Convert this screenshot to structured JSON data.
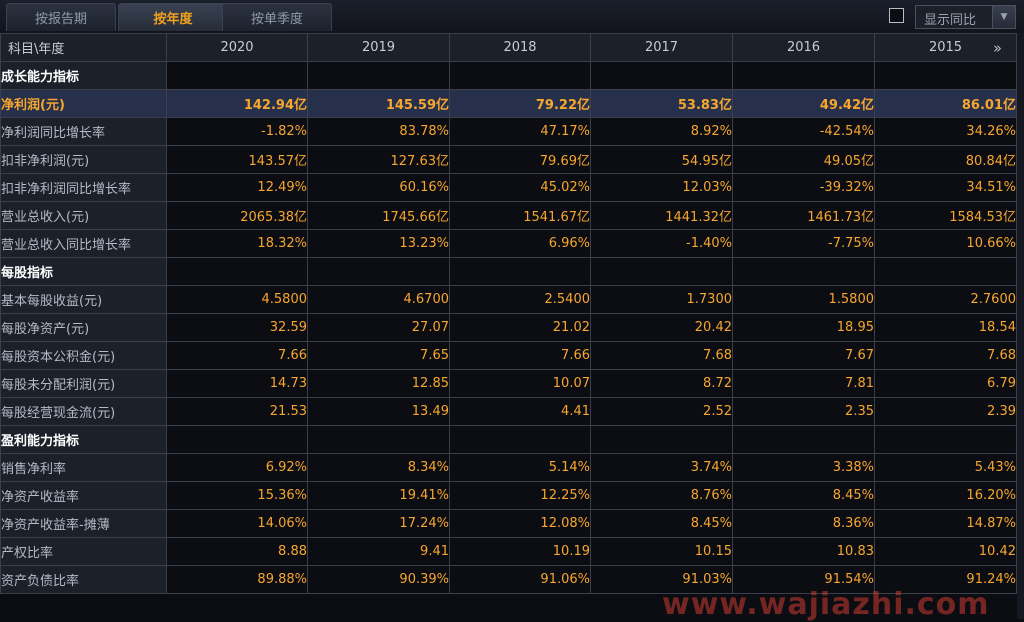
{
  "tabs": [
    {
      "label": "按报告期",
      "active": false
    },
    {
      "label": "按年度",
      "active": true
    },
    {
      "label": "按单季度",
      "active": false
    }
  ],
  "toggle": {
    "label": "显示同比",
    "checked": false
  },
  "table": {
    "corner": "科目\\年度",
    "years": [
      "2020",
      "2019",
      "2018",
      "2017",
      "2016",
      "2015"
    ],
    "rows": [
      {
        "label": "成长能力指标",
        "type": "section",
        "values": [
          "",
          "",
          "",
          "",
          "",
          ""
        ]
      },
      {
        "label": "净利润(元)",
        "type": "highlight",
        "values": [
          "142.94亿",
          "145.59亿",
          "79.22亿",
          "53.83亿",
          "49.42亿",
          "86.01亿"
        ]
      },
      {
        "label": "净利润同比增长率",
        "type": "data",
        "values": [
          "-1.82%",
          "83.78%",
          "47.17%",
          "8.92%",
          "-42.54%",
          "34.26%"
        ]
      },
      {
        "label": "扣非净利润(元)",
        "type": "data",
        "values": [
          "143.57亿",
          "127.63亿",
          "79.69亿",
          "54.95亿",
          "49.05亿",
          "80.84亿"
        ]
      },
      {
        "label": "扣非净利润同比增长率",
        "type": "data",
        "values": [
          "12.49%",
          "60.16%",
          "45.02%",
          "12.03%",
          "-39.32%",
          "34.51%"
        ]
      },
      {
        "label": "营业总收入(元)",
        "type": "data",
        "values": [
          "2065.38亿",
          "1745.66亿",
          "1541.67亿",
          "1441.32亿",
          "1461.73亿",
          "1584.53亿"
        ]
      },
      {
        "label": "营业总收入同比增长率",
        "type": "data",
        "values": [
          "18.32%",
          "13.23%",
          "6.96%",
          "-1.40%",
          "-7.75%",
          "10.66%"
        ]
      },
      {
        "label": "每股指标",
        "type": "section",
        "values": [
          "",
          "",
          "",
          "",
          "",
          ""
        ]
      },
      {
        "label": "基本每股收益(元)",
        "type": "data",
        "values": [
          "4.5800",
          "4.6700",
          "2.5400",
          "1.7300",
          "1.5800",
          "2.7600"
        ]
      },
      {
        "label": "每股净资产(元)",
        "type": "data",
        "values": [
          "32.59",
          "27.07",
          "21.02",
          "20.42",
          "18.95",
          "18.54"
        ]
      },
      {
        "label": "每股资本公积金(元)",
        "type": "data",
        "values": [
          "7.66",
          "7.65",
          "7.66",
          "7.68",
          "7.67",
          "7.68"
        ]
      },
      {
        "label": "每股未分配利润(元)",
        "type": "data",
        "values": [
          "14.73",
          "12.85",
          "10.07",
          "8.72",
          "7.81",
          "6.79"
        ]
      },
      {
        "label": "每股经营现金流(元)",
        "type": "data",
        "values": [
          "21.53",
          "13.49",
          "4.41",
          "2.52",
          "2.35",
          "2.39"
        ]
      },
      {
        "label": "盈利能力指标",
        "type": "section",
        "values": [
          "",
          "",
          "",
          "",
          "",
          ""
        ]
      },
      {
        "label": "销售净利率",
        "type": "data",
        "values": [
          "6.92%",
          "8.34%",
          "5.14%",
          "3.74%",
          "3.38%",
          "5.43%"
        ]
      },
      {
        "label": "净资产收益率",
        "type": "data",
        "values": [
          "15.36%",
          "19.41%",
          "12.25%",
          "8.76%",
          "8.45%",
          "16.20%"
        ]
      },
      {
        "label": "净资产收益率-摊薄",
        "type": "data",
        "values": [
          "14.06%",
          "17.24%",
          "12.08%",
          "8.45%",
          "8.36%",
          "14.87%"
        ]
      },
      {
        "label": "产权比率",
        "type": "data",
        "values": [
          "8.88",
          "9.41",
          "10.19",
          "10.15",
          "10.83",
          "10.42"
        ]
      },
      {
        "label": "资产负债比率",
        "type": "data",
        "values": [
          "89.88%",
          "90.39%",
          "91.06%",
          "91.03%",
          "91.54%",
          "91.24%"
        ]
      }
    ]
  },
  "icons": {
    "expand": "double-chevron-right-icon",
    "combo_arrow": "chevron-down-icon"
  },
  "colors": {
    "value": "#f7a630",
    "highlight_bg": "#26304a",
    "label_bg": "#1c2029",
    "cell_bg": "#0b0d12",
    "grid": "#3a3f4a"
  },
  "watermark": "www.wajiazhi.com"
}
